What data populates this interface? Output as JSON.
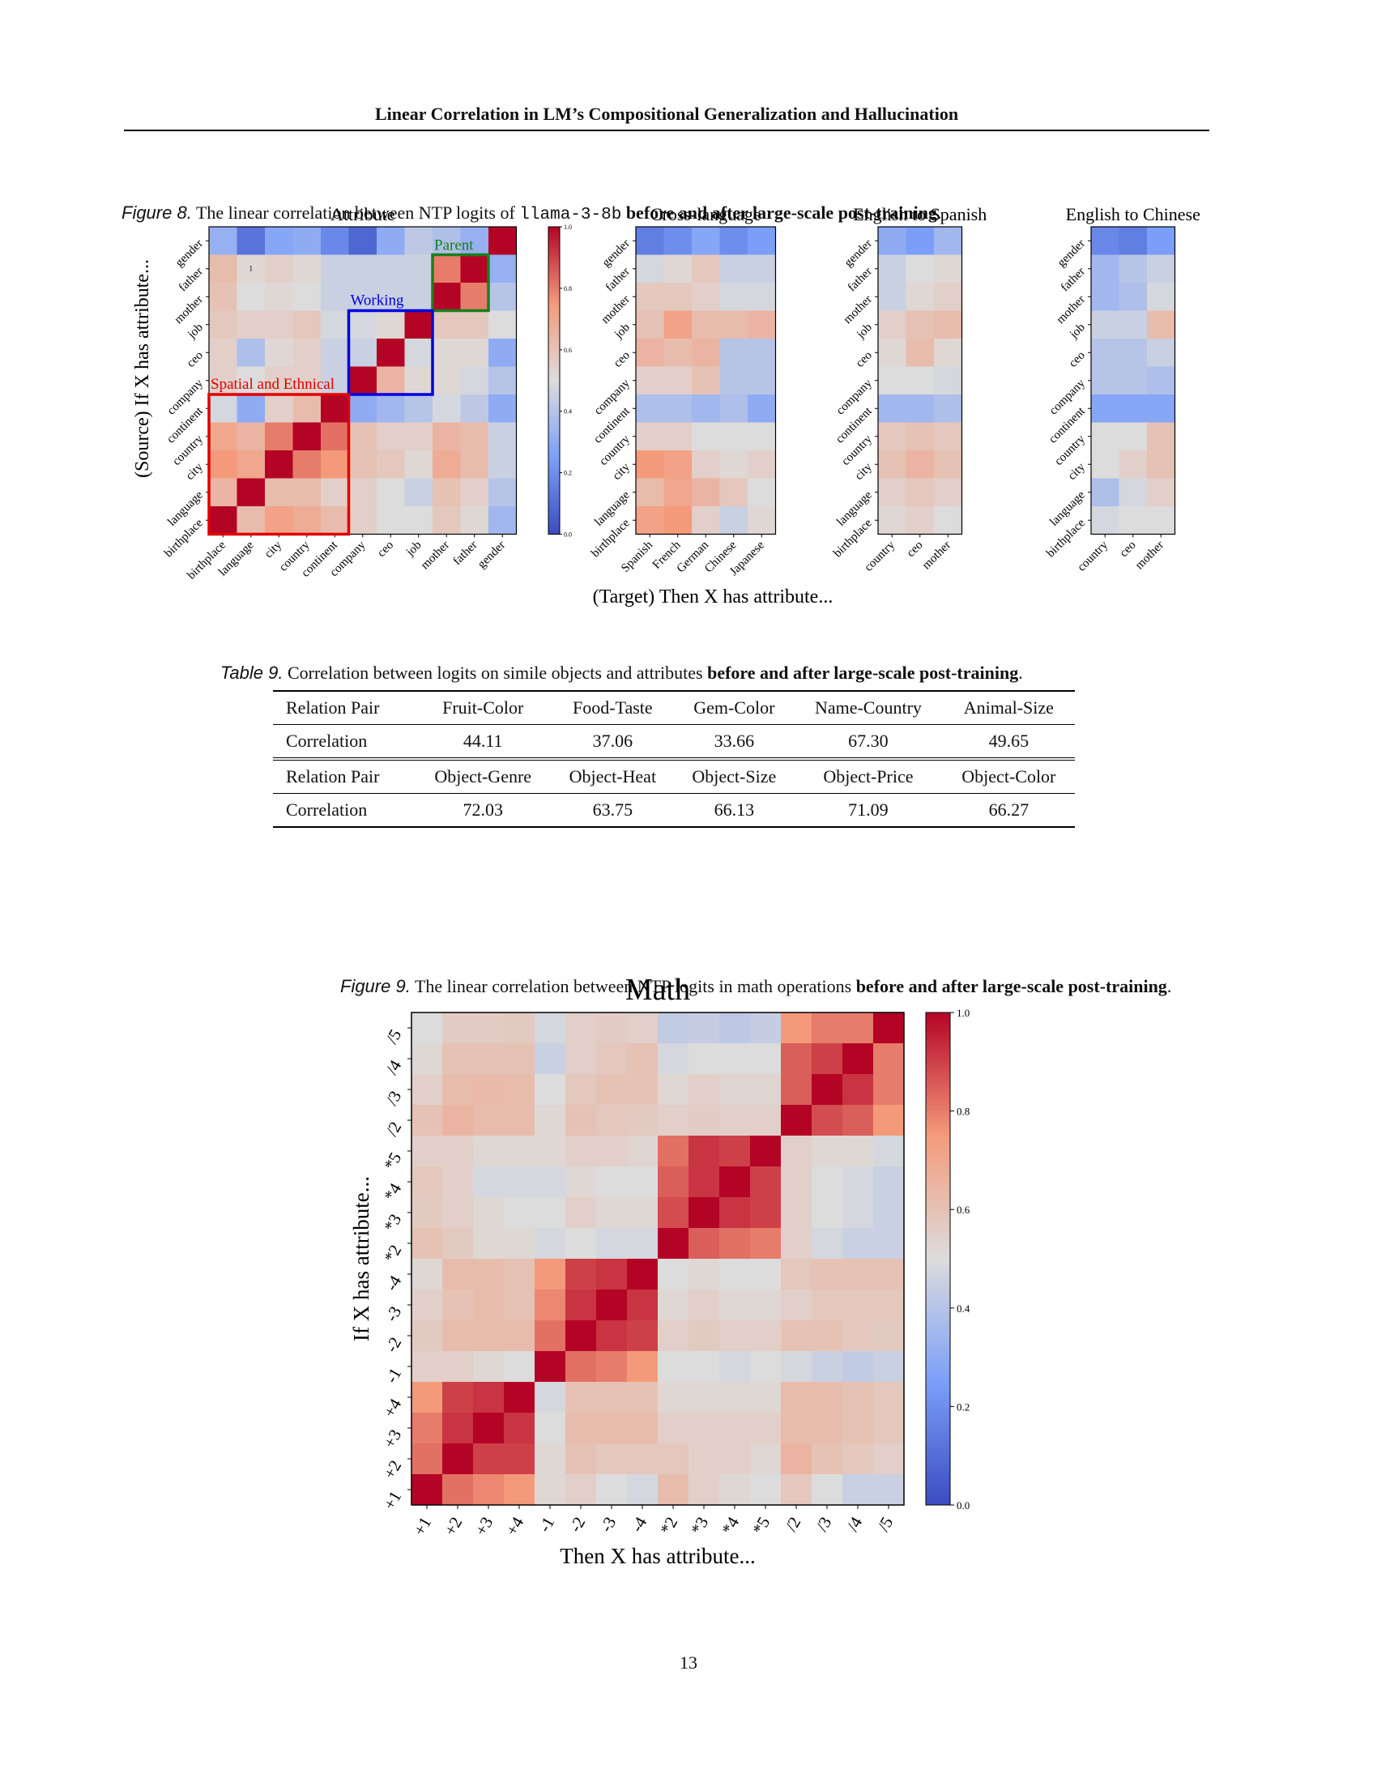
{
  "header": {
    "title": "Linear Correlation in LM’s Compositional Generalization and Hallucination"
  },
  "figure8": {
    "label": "Figure 8.",
    "caption_pre": "The linear correlation between NTP logits of ",
    "model": "llama-3-8b",
    "caption_bold": "before and after large-scale post-training",
    "caption_end": ".",
    "ylabel": "(Source) If X has attribute...",
    "xlabel": "(Target) Then X has attribute...",
    "colorbar": {
      "ticks": [
        "1.0",
        "0.8",
        "0.6",
        "0.4",
        "0.2",
        "0.0"
      ],
      "low": "#3b4cc0",
      "high": "#b40426"
    },
    "row_labels": [
      "gender",
      "father",
      "mother",
      "job",
      "ceo",
      "company",
      "continent",
      "country",
      "city",
      "language",
      "birthplace"
    ],
    "annotations": {
      "parent": "Parent",
      "working": "Working",
      "spatial": "Spatial and Ethnical",
      "cell_note": "1"
    },
    "annotation_colors": {
      "parent": "#1a7f1a",
      "working": "#0000dd",
      "spatial": "#e00000"
    },
    "panels": [
      {
        "title": "Attribute",
        "xlabels": [
          "birthplace",
          "language",
          "city",
          "country",
          "continent",
          "company",
          "ceo",
          "job",
          "mother",
          "father",
          "gender"
        ],
        "matrix": [
          [
            0.32,
            0.12,
            0.28,
            0.3,
            0.18,
            0.08,
            0.3,
            0.42,
            0.38,
            0.32,
            1.0
          ],
          [
            0.62,
            0.52,
            0.55,
            0.52,
            0.45,
            0.45,
            0.45,
            0.45,
            0.8,
            1.0,
            0.32
          ],
          [
            0.6,
            0.5,
            0.52,
            0.5,
            0.45,
            0.45,
            0.45,
            0.45,
            1.0,
            0.8,
            0.4
          ],
          [
            0.58,
            0.55,
            0.55,
            0.58,
            0.48,
            0.48,
            0.52,
            1.0,
            0.58,
            0.58,
            0.5
          ],
          [
            0.55,
            0.38,
            0.52,
            0.55,
            0.45,
            0.45,
            1.0,
            0.48,
            0.52,
            0.52,
            0.3
          ],
          [
            0.55,
            0.5,
            0.55,
            0.55,
            0.45,
            1.0,
            0.65,
            0.52,
            0.52,
            0.48,
            0.4
          ],
          [
            0.48,
            0.3,
            0.55,
            0.62,
            1.0,
            0.3,
            0.35,
            0.4,
            0.48,
            0.42,
            0.3
          ],
          [
            0.7,
            0.65,
            0.8,
            1.0,
            0.82,
            0.6,
            0.55,
            0.55,
            0.65,
            0.62,
            0.45
          ],
          [
            0.75,
            0.7,
            1.0,
            0.8,
            0.75,
            0.6,
            0.58,
            0.52,
            0.68,
            0.62,
            0.45
          ],
          [
            0.65,
            1.0,
            0.62,
            0.62,
            0.55,
            0.55,
            0.5,
            0.45,
            0.6,
            0.55,
            0.4
          ],
          [
            1.0,
            0.62,
            0.72,
            0.68,
            0.62,
            0.55,
            0.5,
            0.5,
            0.58,
            0.52,
            0.35
          ]
        ]
      },
      {
        "title": "Cross-language",
        "xlabels": [
          "Spanish",
          "French",
          "German",
          "Chinese",
          "Japanese"
        ],
        "matrix": [
          [
            0.15,
            0.2,
            0.28,
            0.2,
            0.25
          ],
          [
            0.48,
            0.52,
            0.58,
            0.45,
            0.45
          ],
          [
            0.58,
            0.58,
            0.55,
            0.48,
            0.48
          ],
          [
            0.6,
            0.72,
            0.62,
            0.62,
            0.65
          ],
          [
            0.65,
            0.62,
            0.65,
            0.4,
            0.4
          ],
          [
            0.55,
            0.55,
            0.6,
            0.4,
            0.4
          ],
          [
            0.38,
            0.38,
            0.35,
            0.38,
            0.3
          ],
          [
            0.55,
            0.55,
            0.5,
            0.5,
            0.5
          ],
          [
            0.75,
            0.72,
            0.55,
            0.52,
            0.55
          ],
          [
            0.62,
            0.7,
            0.65,
            0.58,
            0.5
          ],
          [
            0.72,
            0.75,
            0.55,
            0.45,
            0.52
          ]
        ]
      },
      {
        "title": "English to Spanish",
        "xlabels": [
          "country",
          "ceo",
          "mother"
        ],
        "matrix": [
          [
            0.3,
            0.25,
            0.35
          ],
          [
            0.45,
            0.5,
            0.52
          ],
          [
            0.45,
            0.52,
            0.55
          ],
          [
            0.55,
            0.6,
            0.62
          ],
          [
            0.52,
            0.62,
            0.52
          ],
          [
            0.5,
            0.5,
            0.48
          ],
          [
            0.35,
            0.35,
            0.38
          ],
          [
            0.58,
            0.6,
            0.58
          ],
          [
            0.6,
            0.65,
            0.6
          ],
          [
            0.55,
            0.58,
            0.55
          ],
          [
            0.52,
            0.55,
            0.5
          ]
        ]
      },
      {
        "title": "English to Chinese",
        "xlabels": [
          "country",
          "ceo",
          "mother"
        ],
        "matrix": [
          [
            0.18,
            0.15,
            0.25
          ],
          [
            0.35,
            0.4,
            0.45
          ],
          [
            0.35,
            0.38,
            0.48
          ],
          [
            0.45,
            0.45,
            0.62
          ],
          [
            0.4,
            0.4,
            0.45
          ],
          [
            0.4,
            0.4,
            0.38
          ],
          [
            0.28,
            0.28,
            0.28
          ],
          [
            0.5,
            0.5,
            0.6
          ],
          [
            0.5,
            0.55,
            0.6
          ],
          [
            0.38,
            0.48,
            0.55
          ],
          [
            0.48,
            0.5,
            0.5
          ]
        ]
      }
    ]
  },
  "table9": {
    "label": "Table 9.",
    "caption_pre": "Correlation between logits on simile objects and attributes ",
    "caption_bold": "before and after large-scale post-training",
    "caption_end": ".",
    "row_label_header": "Relation Pair",
    "row_label_value": "Correlation",
    "group1": {
      "headers": [
        "Fruit-Color",
        "Food-Taste",
        "Gem-Color",
        "Name-Country",
        "Animal-Size"
      ],
      "values": [
        "44.11",
        "37.06",
        "33.66",
        "67.30",
        "49.65"
      ]
    },
    "group2": {
      "headers": [
        "Object-Genre",
        "Object-Heat",
        "Object-Size",
        "Object-Price",
        "Object-Color"
      ],
      "values": [
        "72.03",
        "63.75",
        "66.13",
        "71.09",
        "66.27"
      ]
    }
  },
  "figure9": {
    "label": "Figure 9.",
    "caption_pre": "The linear correlation between NTP logits in math operations ",
    "caption_bold": "before and after large-scale post-training",
    "caption_end": "."
  },
  "chart_data": {
    "type": "heatmap",
    "title": "Math",
    "xlabel": "Then X has attribute...",
    "ylabel": "If X has attribute...",
    "colorbar": {
      "ticks": [
        "1.0",
        "0.8",
        "0.6",
        "0.4",
        "0.2",
        "0.0"
      ],
      "range": [
        0,
        1
      ]
    },
    "x": [
      "+1",
      "+2",
      "+3",
      "+4",
      "-1",
      "-2",
      "-3",
      "-4",
      "*2",
      "*3",
      "*4",
      "*5",
      "/2",
      "/3",
      "/4",
      "/5"
    ],
    "y_top_to_bottom": [
      "/5",
      "/4",
      "/3",
      "/2",
      "*5",
      "*4",
      "*3",
      "*2",
      "-4",
      "-3",
      "-2",
      "-1",
      "+4",
      "+3",
      "+2",
      "+1"
    ],
    "matrix": [
      [
        0.5,
        0.56,
        0.56,
        0.57,
        0.48,
        0.55,
        0.56,
        0.55,
        0.43,
        0.44,
        0.42,
        0.44,
        0.75,
        0.8,
        0.8,
        1.0
      ],
      [
        0.52,
        0.6,
        0.6,
        0.6,
        0.45,
        0.55,
        0.58,
        0.6,
        0.48,
        0.5,
        0.5,
        0.5,
        0.85,
        0.9,
        1.0,
        0.8
      ],
      [
        0.55,
        0.62,
        0.63,
        0.62,
        0.5,
        0.58,
        0.6,
        0.6,
        0.52,
        0.55,
        0.53,
        0.53,
        0.85,
        1.0,
        0.92,
        0.8
      ],
      [
        0.6,
        0.65,
        0.62,
        0.62,
        0.52,
        0.6,
        0.58,
        0.57,
        0.55,
        0.56,
        0.55,
        0.55,
        1.0,
        0.88,
        0.85,
        0.75
      ],
      [
        0.55,
        0.55,
        0.52,
        0.52,
        0.52,
        0.55,
        0.55,
        0.53,
        0.82,
        0.92,
        0.9,
        1.0,
        0.55,
        0.52,
        0.52,
        0.48
      ],
      [
        0.58,
        0.55,
        0.48,
        0.48,
        0.48,
        0.52,
        0.5,
        0.5,
        0.85,
        0.92,
        1.0,
        0.9,
        0.55,
        0.5,
        0.48,
        0.45
      ],
      [
        0.57,
        0.55,
        0.52,
        0.5,
        0.5,
        0.55,
        0.52,
        0.52,
        0.88,
        1.0,
        0.92,
        0.9,
        0.55,
        0.5,
        0.48,
        0.45
      ],
      [
        0.6,
        0.57,
        0.52,
        0.52,
        0.48,
        0.5,
        0.48,
        0.48,
        1.0,
        0.85,
        0.82,
        0.8,
        0.55,
        0.48,
        0.45,
        0.45
      ],
      [
        0.52,
        0.62,
        0.62,
        0.6,
        0.75,
        0.9,
        0.92,
        1.0,
        0.5,
        0.52,
        0.5,
        0.5,
        0.58,
        0.6,
        0.6,
        0.6
      ],
      [
        0.55,
        0.6,
        0.62,
        0.6,
        0.78,
        0.92,
        1.0,
        0.92,
        0.52,
        0.55,
        0.52,
        0.52,
        0.55,
        0.58,
        0.58,
        0.58
      ],
      [
        0.57,
        0.62,
        0.62,
        0.62,
        0.82,
        1.0,
        0.92,
        0.9,
        0.55,
        0.57,
        0.55,
        0.55,
        0.6,
        0.6,
        0.58,
        0.57
      ],
      [
        0.55,
        0.55,
        0.52,
        0.5,
        1.0,
        0.82,
        0.8,
        0.75,
        0.5,
        0.5,
        0.48,
        0.5,
        0.48,
        0.45,
        0.43,
        0.45
      ],
      [
        0.75,
        0.9,
        0.92,
        1.0,
        0.48,
        0.6,
        0.6,
        0.6,
        0.52,
        0.52,
        0.52,
        0.52,
        0.62,
        0.62,
        0.6,
        0.58
      ],
      [
        0.8,
        0.92,
        1.0,
        0.92,
        0.5,
        0.62,
        0.62,
        0.62,
        0.55,
        0.55,
        0.55,
        0.55,
        0.62,
        0.62,
        0.6,
        0.58
      ],
      [
        0.82,
        1.0,
        0.9,
        0.9,
        0.52,
        0.6,
        0.58,
        0.58,
        0.58,
        0.55,
        0.55,
        0.52,
        0.65,
        0.6,
        0.58,
        0.55
      ],
      [
        1.0,
        0.82,
        0.78,
        0.75,
        0.52,
        0.55,
        0.5,
        0.48,
        0.62,
        0.55,
        0.52,
        0.5,
        0.58,
        0.5,
        0.45,
        0.45
      ]
    ]
  },
  "page_number": "13"
}
